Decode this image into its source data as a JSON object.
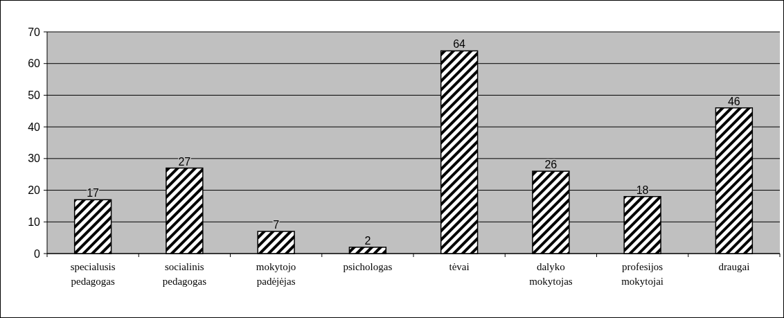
{
  "chart_data": {
    "type": "bar",
    "categories": [
      "specialusis pedagogas",
      "socialinis pedagogas",
      "mokytojo padėjėjas",
      "psichologas",
      "tėvai",
      "dalyko mokytojas",
      "profesijos mokytojai",
      "draugai"
    ],
    "values": [
      17,
      27,
      7,
      2,
      64,
      26,
      18,
      46
    ],
    "color": "#000000",
    "ylim": [
      0,
      70
    ],
    "yticks": [
      0,
      10,
      20,
      30,
      40,
      50,
      60,
      70
    ],
    "grid": "y",
    "data_labels": true
  }
}
